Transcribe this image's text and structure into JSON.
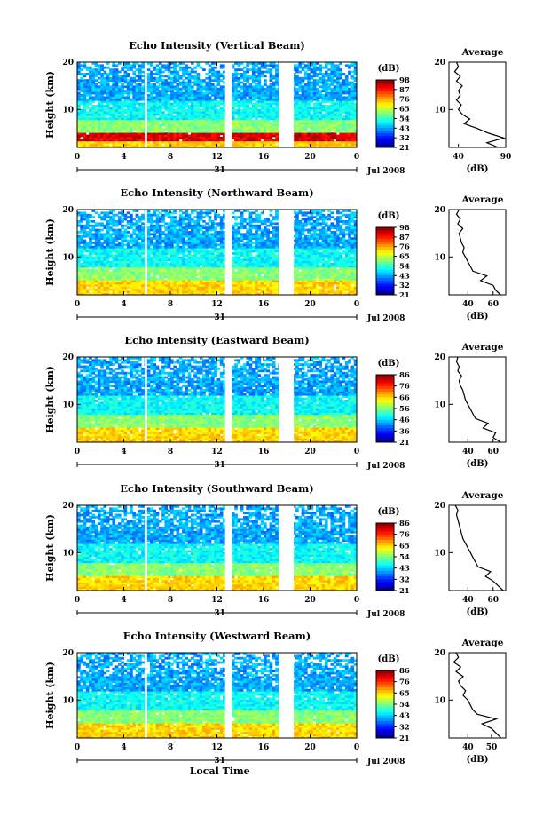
{
  "page": {
    "xlabel": "Local Time",
    "date_label": "Jul 2008",
    "day_label": "31"
  },
  "chart_data": [
    {
      "type": "heatmap",
      "title": "Echo Intensity (Vertical Beam)",
      "ylabel": "Height (km)",
      "x_ticks": [
        "0",
        "4",
        "8",
        "12",
        "16",
        "20",
        "0"
      ],
      "y_ticks": [
        "20",
        "10"
      ],
      "xlim": [
        0,
        24
      ],
      "ylim": [
        2,
        20
      ],
      "colorbar": {
        "label": "(dB)",
        "ticks": [
          "98",
          "87",
          "76",
          "65",
          "54",
          "43",
          "32",
          "21"
        ]
      },
      "profile": {
        "title": "Average",
        "xlabel": "(dB)",
        "x_ticks": [
          "40",
          "90"
        ],
        "y_ticks": [
          "20",
          "10"
        ],
        "xlim": [
          30,
          90
        ],
        "height": [
          2,
          3,
          4,
          5,
          6,
          7,
          8,
          9,
          10,
          11,
          12,
          13,
          14,
          15,
          16,
          17,
          18,
          19,
          20
        ],
        "values": [
          82,
          70,
          88,
          72,
          60,
          46,
          52,
          44,
          40,
          43,
          38,
          42,
          40,
          44,
          38,
          42,
          36,
          40,
          38
        ]
      }
    },
    {
      "type": "heatmap",
      "title": "Echo Intensity (Northward Beam)",
      "ylabel": "Height (km)",
      "x_ticks": [
        "0",
        "4",
        "8",
        "12",
        "16",
        "20",
        "0"
      ],
      "y_ticks": [
        "20",
        "10"
      ],
      "xlim": [
        0,
        24
      ],
      "ylim": [
        2,
        20
      ],
      "colorbar": {
        "label": "(dB)",
        "ticks": [
          "98",
          "87",
          "76",
          "65",
          "54",
          "43",
          "32",
          "21"
        ]
      },
      "profile": {
        "title": "Average",
        "xlabel": "(dB)",
        "x_ticks": [
          "40",
          "60"
        ],
        "y_ticks": [
          "20",
          "10"
        ],
        "xlim": [
          25,
          70
        ],
        "height": [
          2,
          3,
          4,
          5,
          6,
          7,
          8,
          9,
          10,
          11,
          12,
          13,
          14,
          15,
          16,
          17,
          18,
          19,
          20
        ],
        "values": [
          66,
          62,
          60,
          50,
          55,
          44,
          42,
          40,
          38,
          36,
          37,
          35,
          34,
          33,
          36,
          32,
          34,
          31,
          33
        ]
      }
    },
    {
      "type": "heatmap",
      "title": "Echo Intensity (Eastward Beam)",
      "ylabel": "Height (km)",
      "x_ticks": [
        "0",
        "4",
        "8",
        "12",
        "16",
        "20",
        "0"
      ],
      "y_ticks": [
        "20",
        "10"
      ],
      "xlim": [
        0,
        24
      ],
      "ylim": [
        2,
        20
      ],
      "colorbar": {
        "label": "(dB)",
        "ticks": [
          "86",
          "76",
          "66",
          "56",
          "46",
          "36",
          "21"
        ]
      },
      "profile": {
        "title": "Average",
        "xlabel": "(dB)",
        "x_ticks": [
          "40",
          "60"
        ],
        "y_ticks": [
          "20",
          "10"
        ],
        "xlim": [
          25,
          70
        ],
        "height": [
          2,
          3,
          4,
          5,
          6,
          7,
          8,
          9,
          10,
          11,
          12,
          13,
          14,
          15,
          16,
          17,
          18,
          19,
          20
        ],
        "values": [
          66,
          60,
          62,
          52,
          56,
          46,
          44,
          42,
          40,
          38,
          37,
          36,
          34,
          33,
          35,
          32,
          33,
          31,
          32
        ]
      }
    },
    {
      "type": "heatmap",
      "title": "Echo Intensity (Southward Beam)",
      "ylabel": "Height (km)",
      "x_ticks": [
        "0",
        "4",
        "8",
        "12",
        "16",
        "20",
        "0"
      ],
      "y_ticks": [
        "20",
        "10"
      ],
      "xlim": [
        0,
        24
      ],
      "ylim": [
        2,
        20
      ],
      "colorbar": {
        "label": "(dB)",
        "ticks": [
          "86",
          "76",
          "65",
          "54",
          "43",
          "32",
          "21"
        ]
      },
      "profile": {
        "title": "Average",
        "xlabel": "(dB)",
        "x_ticks": [
          "40",
          "60"
        ],
        "y_ticks": [
          "20",
          "10"
        ],
        "xlim": [
          25,
          70
        ],
        "height": [
          2,
          3,
          4,
          5,
          6,
          7,
          8,
          9,
          10,
          11,
          12,
          13,
          14,
          15,
          16,
          17,
          18,
          19,
          20
        ],
        "values": [
          68,
          64,
          60,
          54,
          58,
          48,
          46,
          44,
          42,
          40,
          38,
          36,
          35,
          34,
          33,
          32,
          31,
          32,
          30
        ]
      }
    },
    {
      "type": "heatmap",
      "title": "Echo Intensity (Westward Beam)",
      "ylabel": "Height (km)",
      "x_ticks": [
        "0",
        "4",
        "8",
        "12",
        "16",
        "20",
        "0"
      ],
      "y_ticks": [
        "20",
        "10"
      ],
      "xlim": [
        0,
        24
      ],
      "ylim": [
        2,
        20
      ],
      "colorbar": {
        "label": "(dB)",
        "ticks": [
          "86",
          "76",
          "65",
          "54",
          "43",
          "32",
          "21"
        ]
      },
      "profile": {
        "title": "Average",
        "xlabel": "(dB)",
        "x_ticks": [
          "40",
          "50"
        ],
        "y_ticks": [
          "20",
          "10"
        ],
        "xlim": [
          32,
          56
        ],
        "height": [
          2,
          3,
          4,
          5,
          6,
          7,
          8,
          9,
          10,
          11,
          12,
          13,
          14,
          15,
          16,
          17,
          18,
          19,
          20
        ],
        "values": [
          54,
          52,
          50,
          46,
          52,
          44,
          42,
          41,
          40,
          38,
          39,
          37,
          36,
          38,
          35,
          37,
          34,
          36,
          35
        ]
      }
    }
  ]
}
